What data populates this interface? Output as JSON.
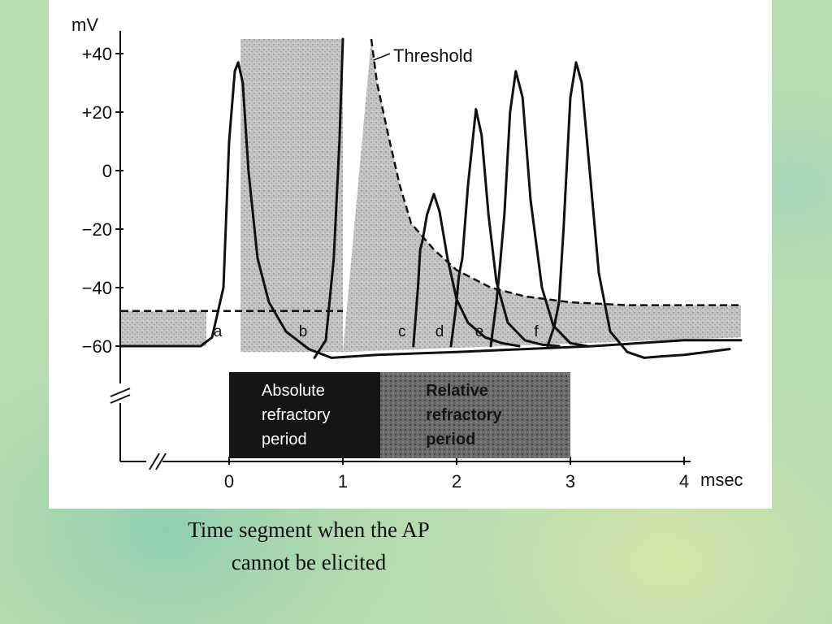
{
  "chart_data": {
    "type": "line",
    "title": "",
    "ylabel": "mV",
    "xlabel": "msec",
    "ylim": [
      -70,
      45
    ],
    "xlim": [
      -0.95,
      4.5
    ],
    "y_ticks": [
      {
        "value": 40,
        "label": "+40"
      },
      {
        "value": 20,
        "label": "+20"
      },
      {
        "value": 0,
        "label": "0"
      },
      {
        "value": -20,
        "label": "−20"
      },
      {
        "value": -40,
        "label": "−40"
      },
      {
        "value": -60,
        "label": "−60"
      }
    ],
    "x_ticks": [
      {
        "value": 0,
        "label": "0"
      },
      {
        "value": 1,
        "label": "1"
      },
      {
        "value": 2,
        "label": "2"
      },
      {
        "value": 3,
        "label": "3"
      },
      {
        "value": 4,
        "label": "4"
      }
    ],
    "resting_potential": -60,
    "threshold_label": "Threshold",
    "threshold": {
      "x": [
        -0.95,
        1.0,
        1.22,
        1.25,
        1.3,
        1.4,
        1.5,
        1.6,
        1.8,
        2.0,
        2.3,
        2.6,
        3.0,
        3.5,
        4.0,
        4.5
      ],
      "y": [
        -48,
        -48,
        null,
        45,
        30,
        12,
        -5,
        -18,
        -27,
        -34,
        -40,
        -43,
        -45,
        -46,
        -46,
        -46
      ]
    },
    "series": [
      {
        "label": "a",
        "stimulus_time": 0,
        "peak_time": 0.08,
        "peak": 37,
        "x": [
          -0.95,
          -0.25,
          -0.15,
          -0.05,
          0.0,
          0.05,
          0.08,
          0.12,
          0.17,
          0.25,
          0.35,
          0.5,
          0.7,
          0.9,
          1.3,
          2.0,
          2.6,
          3.2,
          3.6,
          4.0,
          4.5
        ],
        "y": [
          -60,
          -60,
          -57,
          -40,
          10,
          34,
          37,
          30,
          0,
          -30,
          -45,
          -55,
          -61,
          -64,
          -63,
          -62,
          -61,
          -60,
          -59,
          -58,
          -58
        ]
      },
      {
        "label": "b",
        "stimulus_time": 0.75,
        "peak_time": 1.0,
        "peak": null,
        "x": [
          0.75,
          0.85,
          0.92,
          0.97,
          1.0
        ],
        "y": [
          -64,
          -58,
          -30,
          10,
          45
        ]
      },
      {
        "label": "c",
        "stimulus_time": 1.62,
        "peak_time": 1.8,
        "peak": -8,
        "x": [
          1.62,
          1.66,
          1.68,
          1.7,
          1.74,
          1.8,
          1.85,
          1.92,
          2.0,
          2.1,
          2.25,
          2.4,
          2.55
        ],
        "y": [
          -60,
          -40,
          -27,
          -24,
          -15,
          -8,
          -14,
          -30,
          -44,
          -52,
          -57,
          -59,
          -60
        ]
      },
      {
        "label": "d",
        "stimulus_time": 1.95,
        "peak_time": 2.17,
        "peak": 21,
        "x": [
          1.95,
          1.99,
          2.02,
          2.05,
          2.1,
          2.17,
          2.22,
          2.28,
          2.35,
          2.45,
          2.6,
          2.75,
          2.9
        ],
        "y": [
          -60,
          -48,
          -36,
          -30,
          -5,
          21,
          12,
          -15,
          -38,
          -52,
          -58,
          -59.5,
          -60
        ]
      },
      {
        "label": "e",
        "stimulus_time": 2.3,
        "peak_time": 2.52,
        "peak": 34,
        "x": [
          2.3,
          2.35,
          2.38,
          2.42,
          2.47,
          2.52,
          2.58,
          2.65,
          2.75,
          2.85,
          3.0,
          3.15
        ],
        "y": [
          -60,
          -45,
          -33,
          -15,
          20,
          34,
          25,
          -10,
          -40,
          -53,
          -59,
          -60
        ]
      },
      {
        "label": "f",
        "stimulus_time": 2.8,
        "peak_time": 3.05,
        "peak": 37,
        "x": [
          2.8,
          2.86,
          2.9,
          2.94,
          3.0,
          3.05,
          3.1,
          3.17,
          3.25,
          3.35,
          3.5,
          3.65,
          3.8,
          4.0,
          4.2,
          4.4
        ],
        "y": [
          -60,
          -53,
          -45,
          -20,
          25,
          37,
          30,
          0,
          -35,
          -55,
          -62,
          -64,
          -63.5,
          -63,
          -62,
          -61
        ]
      }
    ],
    "periods": [
      {
        "label_lines": [
          "Absolute",
          "refractory",
          "period"
        ],
        "start": 0,
        "end": 1.33
      },
      {
        "label_lines": [
          "Relative",
          "refractory",
          "period"
        ],
        "start": 1.33,
        "end": 3.0
      }
    ],
    "curve_label_positions_mV": -55
  },
  "caption": {
    "line1": "Time segment when the AP",
    "line2": "cannot be elicited"
  },
  "colors": {
    "background": "#b9dcb0",
    "panel": "#ffffff",
    "ink": "#111111",
    "absolute_period": "#151515",
    "relative_period": "#6b6b6b",
    "shading": "#bdbdbd"
  }
}
